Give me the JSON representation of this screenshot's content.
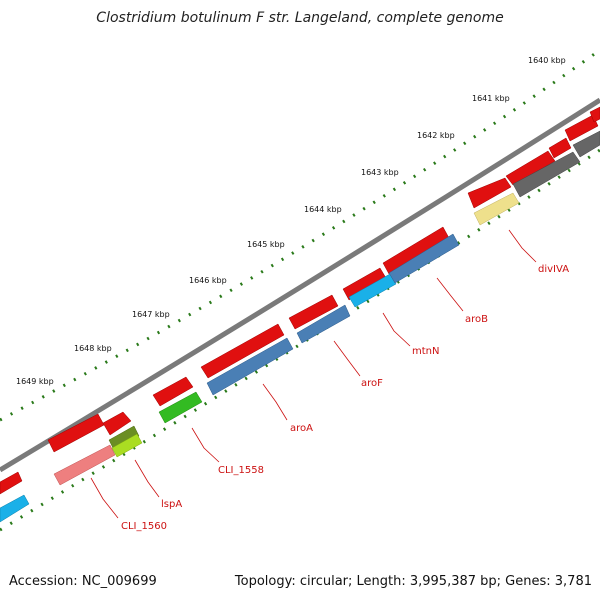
{
  "title": "Clostridium botulinum F str. Langeland, complete genome",
  "footer": {
    "accession": "Accession: NC_009699",
    "info": "Topology: circular; Length: 3,995,387 bp; Genes: 3,781"
  },
  "ticks": [
    "1640 kbp",
    "1641 kbp",
    "1642 kbp",
    "1643 kbp",
    "1644 kbp",
    "1645 kbp",
    "1646 kbp",
    "1647 kbp",
    "1648 kbp",
    "1649 kbp"
  ],
  "gene_labels": [
    "divIVA",
    "aroB",
    "mtnN",
    "aroF",
    "aroA",
    "CLI_1558",
    "lspA",
    "CLI_1560"
  ],
  "colors": {
    "backbone": "#7a7a7a",
    "forward_cds": "#e01010",
    "blue": "#4a7fb5",
    "cyan": "#1ab0e8",
    "green": "#33bb22",
    "lime": "#aadd22",
    "olive": "#6b8e23",
    "pink": "#ee7f7f",
    "yellow": "#eee08c",
    "grey": "#666666",
    "dots": "#2a7a1a",
    "label": "#cc1111"
  }
}
